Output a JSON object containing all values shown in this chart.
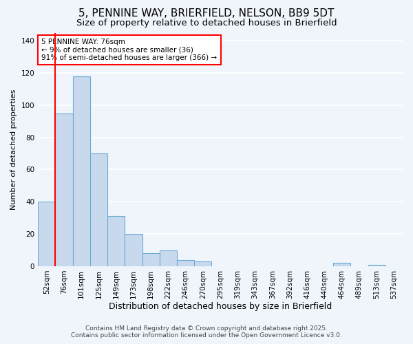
{
  "title": "5, PENNINE WAY, BRIERFIELD, NELSON, BB9 5DT",
  "subtitle": "Size of property relative to detached houses in Brierfield",
  "xlabel": "Distribution of detached houses by size in Brierfield",
  "ylabel": "Number of detached properties",
  "categories": [
    "52sqm",
    "76sqm",
    "101sqm",
    "125sqm",
    "149sqm",
    "173sqm",
    "198sqm",
    "222sqm",
    "246sqm",
    "270sqm",
    "295sqm",
    "319sqm",
    "343sqm",
    "367sqm",
    "392sqm",
    "416sqm",
    "440sqm",
    "464sqm",
    "489sqm",
    "513sqm",
    "537sqm"
  ],
  "values": [
    40,
    95,
    118,
    70,
    31,
    20,
    8,
    10,
    4,
    3,
    0,
    0,
    0,
    0,
    0,
    0,
    0,
    2,
    0,
    1,
    0
  ],
  "bar_color": "#c8d9ee",
  "bar_edge_color": "#6aaad4",
  "red_line_index": 1,
  "annotation_text": "5 PENNINE WAY: 76sqm\n← 9% of detached houses are smaller (36)\n91% of semi-detached houses are larger (366) →",
  "annotation_box_color": "white",
  "annotation_box_edge_color": "red",
  "background_color": "#f0f5fc",
  "plot_bg_color": "#f0f5fc",
  "grid_color": "white",
  "ylim": [
    0,
    145
  ],
  "yticks": [
    0,
    20,
    40,
    60,
    80,
    100,
    120,
    140
  ],
  "footer_line1": "Contains HM Land Registry data © Crown copyright and database right 2025.",
  "footer_line2": "Contains public sector information licensed under the Open Government Licence v3.0.",
  "title_fontsize": 11,
  "subtitle_fontsize": 9.5,
  "xlabel_fontsize": 9,
  "ylabel_fontsize": 8,
  "tick_fontsize": 7.5,
  "annotation_fontsize": 7.5,
  "footer_fontsize": 6.5
}
